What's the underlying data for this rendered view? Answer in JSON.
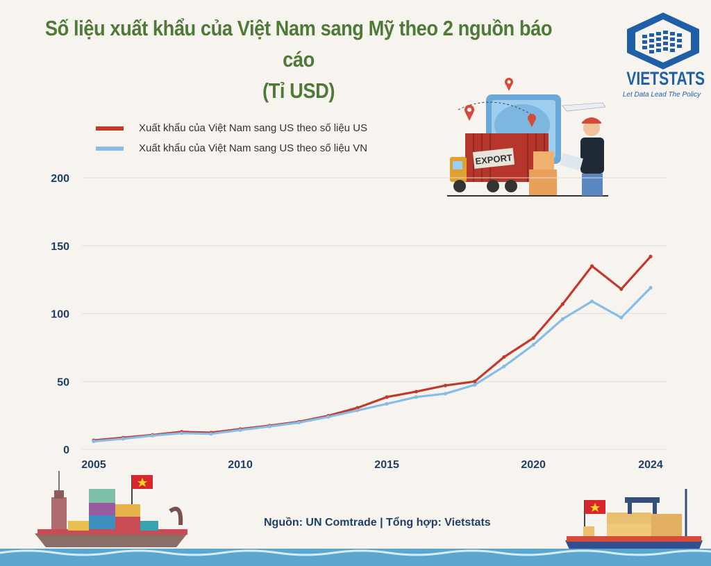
{
  "title_line1": "Số liệu xuất khẩu của Việt Nam sang Mỹ theo 2 nguồn báo cáo",
  "title_line2": "(Tỉ USD)",
  "logo": {
    "name": "VIETSTATS",
    "tagline": "Let Data Lead The Policy",
    "color": "#1f5fa8"
  },
  "export_sign": "EXPORT",
  "source": "Nguồn: UN Comtrade | Tổng hợp: Vietstats",
  "chart_data": {
    "type": "line",
    "x": [
      2005,
      2006,
      2007,
      2008,
      2009,
      2010,
      2011,
      2012,
      2013,
      2014,
      2015,
      2016,
      2017,
      2018,
      2019,
      2020,
      2021,
      2022,
      2023,
      2024
    ],
    "series": [
      {
        "name": "Xuất khẩu của Việt Nam sang US theo số liệu US",
        "color": "#c0392b",
        "values": [
          6.6,
          8.6,
          10.6,
          12.9,
          12.3,
          14.9,
          17.5,
          20.3,
          24.7,
          30.6,
          38.5,
          42.5,
          47.0,
          50.0,
          68.0,
          82.0,
          107.0,
          135.0,
          118.0,
          142.0
        ]
      },
      {
        "name": "Xuất khẩu của Việt Nam sang US theo số liệu VN",
        "color": "#85bde8",
        "values": [
          5.9,
          7.8,
          10.1,
          11.9,
          11.4,
          14.2,
          16.9,
          19.7,
          23.9,
          28.7,
          33.5,
          38.5,
          41.0,
          47.5,
          61.0,
          77.0,
          96.0,
          109.0,
          97.0,
          119.0
        ]
      }
    ],
    "xticks": [
      2005,
      2010,
      2015,
      2020,
      2024
    ],
    "yticks": [
      0,
      50,
      100,
      150,
      200
    ],
    "ylim": [
      0,
      200
    ],
    "xlim": [
      2005,
      2024
    ],
    "grid": true,
    "legend": "top-left"
  }
}
